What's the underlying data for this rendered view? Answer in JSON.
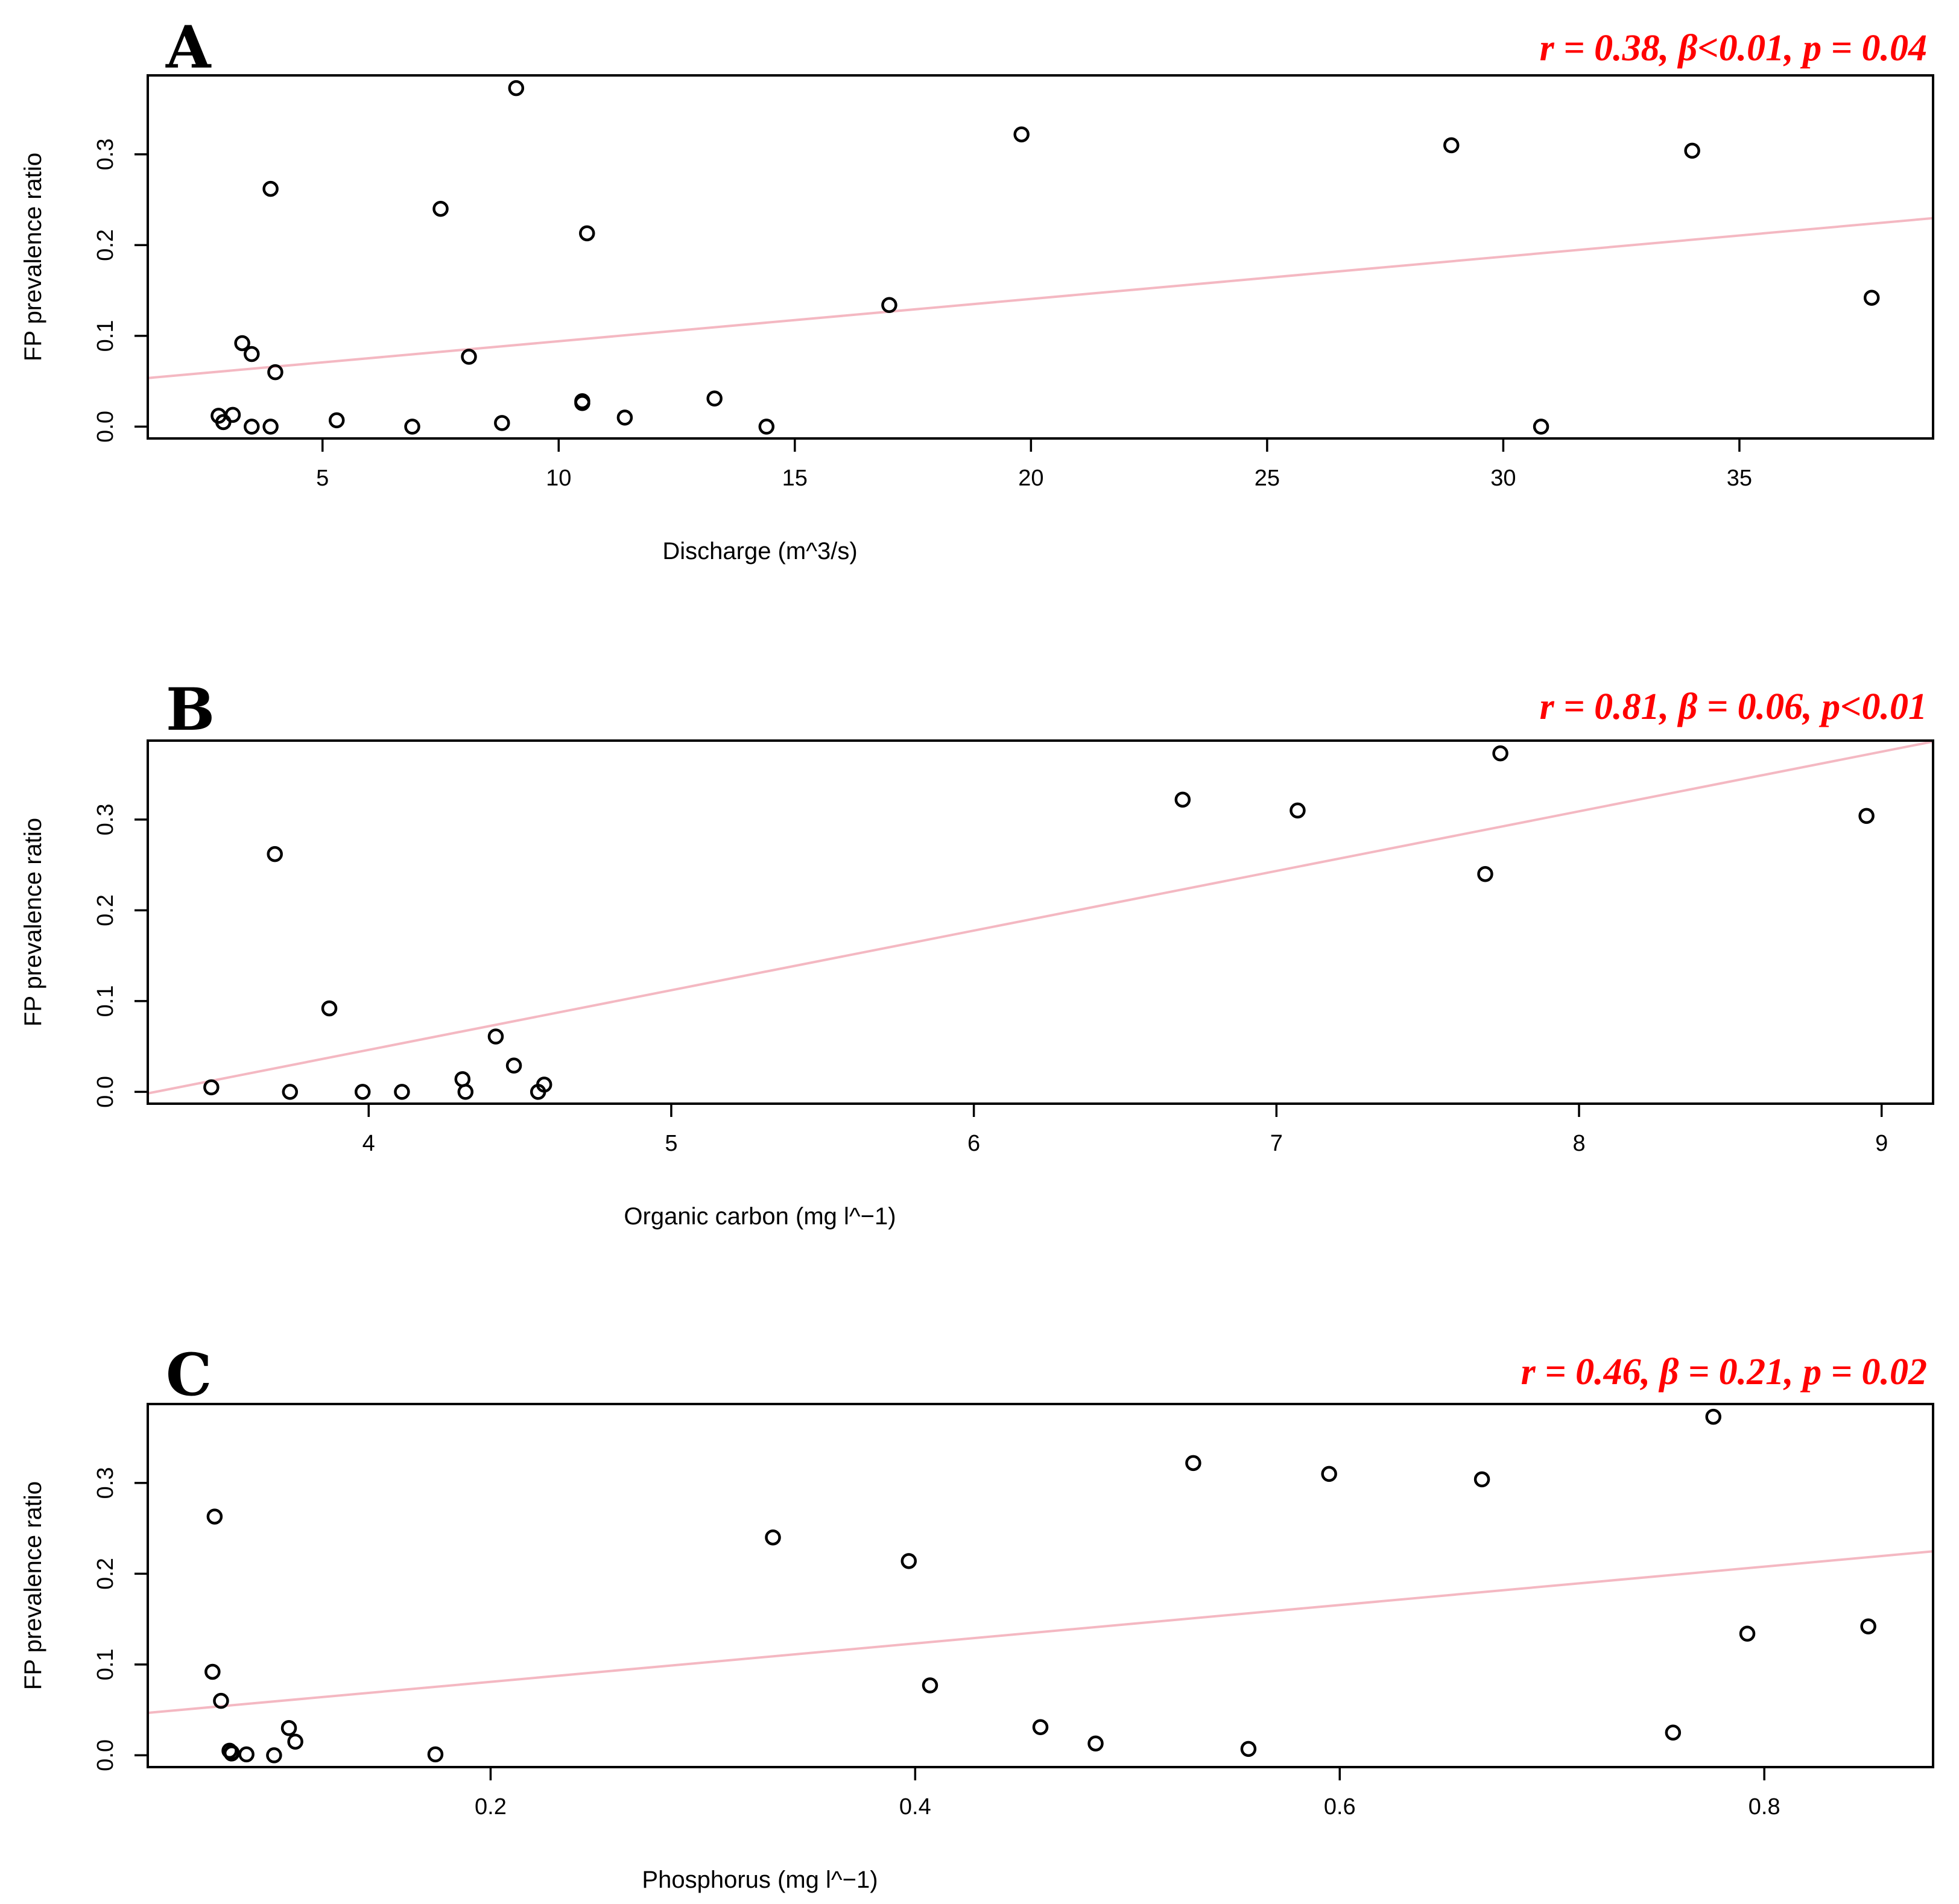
{
  "colors": {
    "annotation": "#ff0000",
    "fit_line": "#f4b8c2",
    "points": "#000000"
  },
  "chart_data": [
    {
      "panel": "A",
      "type": "scatter",
      "annotation": "r = 0.38, β<0.01, p = 0.04",
      "xlabel": "Discharge (m^3/s)",
      "ylabel": "FP prevalence ratio",
      "xlim": [
        1.3,
        39.1
      ],
      "ylim": [
        -0.013,
        0.387
      ],
      "xticks": [
        5,
        10,
        15,
        20,
        25,
        30,
        35
      ],
      "xtick_labels": [
        "5",
        "10",
        "15",
        "20",
        "25",
        "30",
        "35"
      ],
      "yticks": [
        0.0,
        0.1,
        0.2,
        0.3
      ],
      "ytick_labels": [
        "0.0",
        "0.1",
        "0.2",
        "0.3"
      ],
      "fit": {
        "intercept": 0.0475,
        "slope": 0.00466
      },
      "x": [
        2.8,
        2.9,
        3.1,
        2.9,
        3.5,
        3.3,
        3.5,
        3.9,
        3.9,
        4.0,
        5.3,
        6.9,
        7.5,
        8.1,
        8.8,
        9.1,
        10.5,
        10.5,
        10.6,
        11.4,
        13.3,
        14.4,
        17.0,
        19.8,
        28.9,
        30.8,
        34.0,
        37.8
      ],
      "y": [
        0.012,
        0.005,
        0.013,
        0.005,
        0.0,
        0.092,
        0.08,
        0.262,
        0.0,
        0.06,
        0.007,
        0.0,
        0.24,
        0.077,
        0.004,
        0.373,
        0.028,
        0.026,
        0.213,
        0.01,
        0.031,
        0.0,
        0.134,
        0.322,
        0.31,
        0.0,
        0.304,
        0.142
      ]
    },
    {
      "panel": "B",
      "type": "scatter",
      "annotation": "r = 0.81, β = 0.06, p<0.01",
      "xlabel": "Organic carbon (mg l^−1)",
      "ylabel": "FP prevalence ratio",
      "xlim": [
        3.27,
        9.17
      ],
      "ylim": [
        -0.013,
        0.387
      ],
      "xticks": [
        4,
        5,
        6,
        7,
        8,
        9
      ],
      "xtick_labels": [
        "4",
        "5",
        "6",
        "7",
        "8",
        "9"
      ],
      "yticks": [
        0.0,
        0.1,
        0.2,
        0.3
      ],
      "ytick_labels": [
        "0.0",
        "0.1",
        "0.2",
        "0.3"
      ],
      "fit": {
        "intercept": -0.2165,
        "slope": 0.0657
      },
      "x": [
        3.48,
        3.69,
        3.74,
        3.87,
        3.98,
        4.11,
        4.31,
        4.32,
        4.42,
        4.48,
        4.56,
        4.58,
        6.69,
        7.07,
        7.69,
        7.74,
        8.95
      ],
      "y": [
        0.005,
        0.262,
        0.0,
        0.092,
        0.0,
        0.0,
        0.014,
        0.0,
        0.061,
        0.029,
        0.0,
        0.008,
        0.322,
        0.31,
        0.24,
        0.373,
        0.304
      ]
    },
    {
      "panel": "C",
      "type": "scatter",
      "annotation": "r = 0.46, β = 0.21, p = 0.02",
      "xlabel": "Phosphorus (mg l^−1)",
      "ylabel": "FP prevalence ratio",
      "xlim": [
        0.0385,
        0.8795
      ],
      "ylim": [
        -0.013,
        0.387
      ],
      "xticks": [
        0.2,
        0.4,
        0.6,
        0.8
      ],
      "xtick_labels": [
        "0.2",
        "0.4",
        "0.6",
        "0.8"
      ],
      "yticks": [
        0.0,
        0.1,
        0.2,
        0.3
      ],
      "ytick_labels": [
        "0.0",
        "0.1",
        "0.2",
        "0.3"
      ],
      "fit": {
        "intercept": 0.0386,
        "slope": 0.2116
      },
      "x": [
        0.069,
        0.07,
        0.073,
        0.077,
        0.078,
        0.078,
        0.085,
        0.098,
        0.105,
        0.108,
        0.174,
        0.333,
        0.397,
        0.407,
        0.459,
        0.485,
        0.531,
        0.557,
        0.595,
        0.667,
        0.757,
        0.776,
        0.792,
        0.849
      ],
      "y": [
        0.092,
        0.263,
        0.06,
        0.005,
        0.002,
        0.003,
        0.001,
        0.0,
        0.03,
        0.015,
        0.001,
        0.24,
        0.214,
        0.077,
        0.031,
        0.013,
        0.322,
        0.007,
        0.31,
        0.304,
        0.025,
        0.373,
        0.134,
        0.142
      ]
    }
  ],
  "panel_labels": [
    "A",
    "B",
    "C"
  ]
}
